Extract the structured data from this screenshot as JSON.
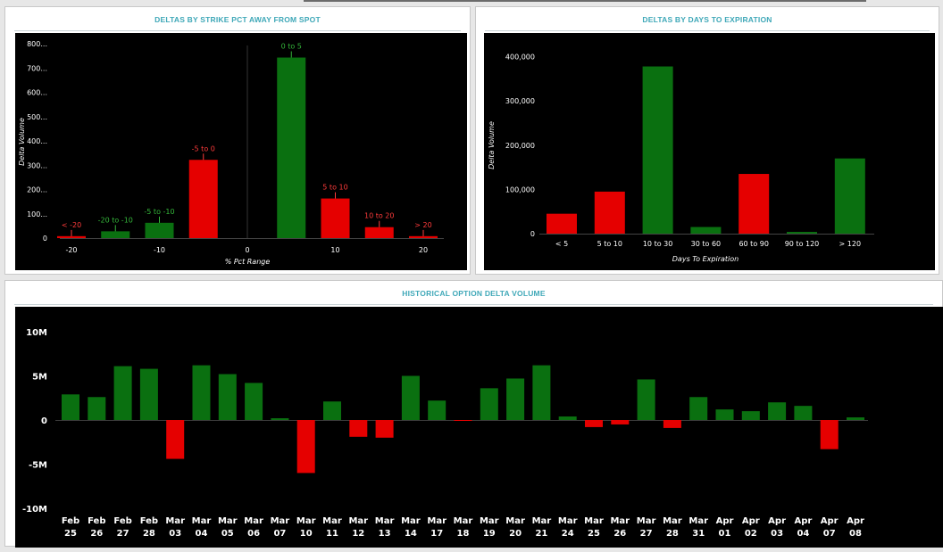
{
  "colors": {
    "positive": "#0a7010",
    "negative": "#e50000",
    "panel_title": "#3fa8b8",
    "chart_bg": "#000000"
  },
  "panels": {
    "strike": {
      "title": "DELTAS BY STRIKE PCT AWAY FROM SPOT"
    },
    "expiry": {
      "title": "DELTAS BY DAYS TO EXPIRATION"
    },
    "history": {
      "title": "HISTORICAL OPTION DELTA VOLUME"
    }
  },
  "chart_data": [
    {
      "type": "bar",
      "title": "DELTAS BY STRIKE PCT AWAY FROM SPOT",
      "xlabel": "% Pct Range",
      "ylabel": "Delta Volume",
      "x_ticks": [
        "-20",
        "-10",
        "0",
        "10",
        "20"
      ],
      "y_ticks": [
        "0",
        "100...",
        "200...",
        "300...",
        "400...",
        "500...",
        "600...",
        "700...",
        "800..."
      ],
      "ylim": [
        0,
        800
      ],
      "bars": [
        {
          "label": "< -20",
          "x": -20,
          "value": 8,
          "sign": "negative"
        },
        {
          "label": "-20 to -10",
          "x": -15,
          "value": 28,
          "sign": "positive"
        },
        {
          "label": "-5 to -10",
          "x": -10,
          "value": 63,
          "sign": "positive"
        },
        {
          "label": "-5 to 0",
          "x": -5,
          "value": 322,
          "sign": "negative"
        },
        {
          "label": "0 to 5",
          "x": 5,
          "value": 743,
          "sign": "positive"
        },
        {
          "label": "5 to 10",
          "x": 10,
          "value": 163,
          "sign": "negative"
        },
        {
          "label": "10 to 20",
          "x": 15,
          "value": 45,
          "sign": "negative"
        },
        {
          "label": "> 20",
          "x": 20,
          "value": 8,
          "sign": "negative"
        }
      ]
    },
    {
      "type": "bar",
      "title": "DELTAS BY DAYS TO EXPIRATION",
      "xlabel": "Days To Expiration",
      "ylabel": "Delta Volume",
      "y_ticks": [
        "0",
        "100,000",
        "200,000",
        "300,000",
        "400,000"
      ],
      "ylim": [
        0,
        400000
      ],
      "categories": [
        "< 5",
        "5 to 10",
        "10 to 30",
        "30 to 60",
        "60 to 90",
        "90 to 120",
        "> 120"
      ],
      "values": [
        45000,
        95000,
        378000,
        15000,
        135000,
        4000,
        170000
      ],
      "signs": [
        "negative",
        "negative",
        "positive",
        "positive",
        "negative",
        "positive",
        "positive"
      ]
    },
    {
      "type": "bar",
      "title": "HISTORICAL OPTION DELTA VOLUME",
      "y_ticks": [
        "10M",
        "5M",
        "0",
        "-5M",
        "-10M"
      ],
      "ylim": [
        -10,
        10
      ],
      "unit": "M",
      "categories": [
        [
          "Feb",
          "25"
        ],
        [
          "Feb",
          "26"
        ],
        [
          "Feb",
          "27"
        ],
        [
          "Feb",
          "28"
        ],
        [
          "Mar",
          "03"
        ],
        [
          "Mar",
          "04"
        ],
        [
          "Mar",
          "05"
        ],
        [
          "Mar",
          "06"
        ],
        [
          "Mar",
          "07"
        ],
        [
          "Mar",
          "10"
        ],
        [
          "Mar",
          "11"
        ],
        [
          "Mar",
          "12"
        ],
        [
          "Mar",
          "13"
        ],
        [
          "Mar",
          "14"
        ],
        [
          "Mar",
          "17"
        ],
        [
          "Mar",
          "18"
        ],
        [
          "Mar",
          "19"
        ],
        [
          "Mar",
          "20"
        ],
        [
          "Mar",
          "21"
        ],
        [
          "Mar",
          "24"
        ],
        [
          "Mar",
          "25"
        ],
        [
          "Mar",
          "26"
        ],
        [
          "Mar",
          "27"
        ],
        [
          "Mar",
          "28"
        ],
        [
          "Mar",
          "31"
        ],
        [
          "Apr",
          "01"
        ],
        [
          "Apr",
          "02"
        ],
        [
          "Apr",
          "03"
        ],
        [
          "Apr",
          "04"
        ],
        [
          "Apr",
          "07"
        ],
        [
          "Apr",
          "08"
        ]
      ],
      "values": [
        2.9,
        2.6,
        6.1,
        5.8,
        -4.4,
        6.2,
        5.2,
        4.2,
        0.2,
        -6.0,
        2.1,
        -1.9,
        -2.0,
        5.0,
        2.2,
        -0.1,
        3.6,
        4.7,
        6.2,
        0.4,
        -0.8,
        -0.5,
        4.6,
        -0.9,
        2.6,
        1.2,
        1.0,
        2.0,
        1.6,
        -3.3,
        0.3
      ]
    }
  ]
}
